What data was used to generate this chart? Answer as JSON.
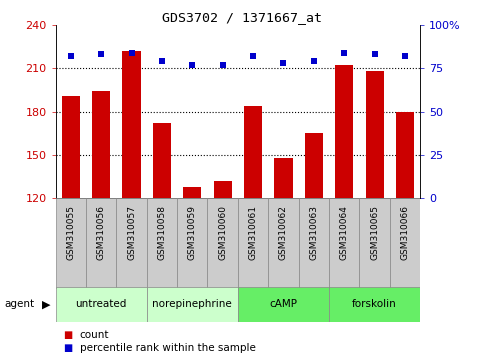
{
  "title": "GDS3702 / 1371667_at",
  "samples": [
    "GSM310055",
    "GSM310056",
    "GSM310057",
    "GSM310058",
    "GSM310059",
    "GSM310060",
    "GSM310061",
    "GSM310062",
    "GSM310063",
    "GSM310064",
    "GSM310065",
    "GSM310066"
  ],
  "counts": [
    191,
    194,
    222,
    172,
    128,
    132,
    184,
    148,
    165,
    212,
    208,
    180
  ],
  "percentile_ranks": [
    82,
    83,
    84,
    79,
    77,
    77,
    82,
    78,
    79,
    84,
    83,
    82
  ],
  "ylim_left": [
    120,
    240
  ],
  "ylim_right": [
    0,
    100
  ],
  "yticks_left": [
    120,
    150,
    180,
    210,
    240
  ],
  "yticks_right": [
    0,
    25,
    50,
    75,
    100
  ],
  "ytick_labels_right": [
    "0",
    "25",
    "50",
    "75",
    "100%"
  ],
  "bar_color": "#cc0000",
  "dot_color": "#0000cc",
  "grid_color": "#000000",
  "grid_lines": [
    150,
    180,
    210
  ],
  "agents": [
    {
      "label": "untreated",
      "start": 0,
      "end": 3
    },
    {
      "label": "norepinephrine",
      "start": 3,
      "end": 6
    },
    {
      "label": "cAMP",
      "start": 6,
      "end": 9
    },
    {
      "label": "forskolin",
      "start": 9,
      "end": 12
    }
  ],
  "agent_bg_colors": [
    "#ccffcc",
    "#99ee99",
    "#66dd66",
    "#33cc33"
  ],
  "agent_label": "agent",
  "legend_count_label": "count",
  "legend_pct_label": "percentile rank within the sample",
  "tick_label_color_left": "#cc0000",
  "tick_label_color_right": "#0000cc",
  "bg_sample_row": "#cccccc",
  "bg_agent_row_light": "#ccffcc",
  "bg_agent_row_dark": "#66ee66"
}
